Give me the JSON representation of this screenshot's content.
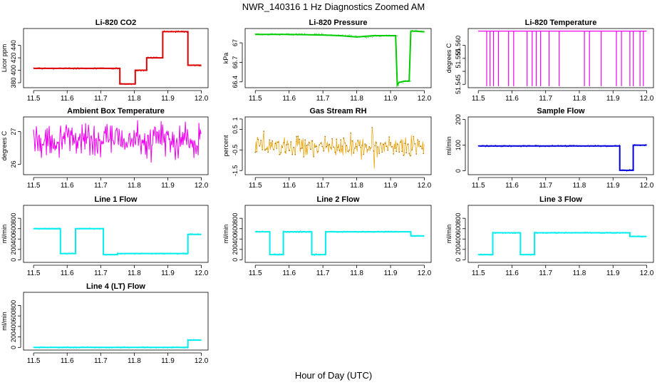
{
  "figure": {
    "title": "NWR_140316  1 Hz Diagnostics Zoomed AM",
    "xlabel": "Hour of Day (UTC)"
  },
  "chart_data": [
    {
      "type": "line",
      "title": "Li-820 CO2",
      "ylabel": "Licor ppm",
      "color": "#dd0000",
      "xlim": [
        11.47,
        12.02
      ],
      "ylim": [
        372,
        467
      ],
      "x_ticks": [
        11.5,
        11.6,
        11.7,
        11.8,
        11.9,
        12.0
      ],
      "y_ticks": [
        380,
        400,
        420,
        440
      ],
      "series": [
        {
          "x": [
            11.5,
            11.757,
            11.757,
            11.803,
            11.803,
            11.837,
            11.837,
            11.885,
            11.885,
            11.96,
            11.96,
            12.0
          ],
          "y": [
            403,
            403,
            378,
            378,
            400,
            400,
            420,
            420,
            462,
            462,
            408,
            408
          ]
        }
      ]
    },
    {
      "type": "line",
      "title": "Li-820 Pressure",
      "ylabel": "kPa",
      "color": "#00cc00",
      "xlim": [
        11.47,
        12.02
      ],
      "ylim": [
        66.31,
        67.22
      ],
      "x_ticks": [
        11.5,
        11.6,
        11.7,
        11.8,
        11.9,
        12.0
      ],
      "y_ticks": [
        66.4,
        66.7,
        67.0
      ],
      "series": [
        {
          "x": [
            11.5,
            11.6,
            11.7,
            11.75,
            11.8,
            11.85,
            11.915,
            11.92,
            11.925,
            11.94,
            11.955,
            11.96,
            11.97,
            12.0
          ],
          "y": [
            67.13,
            67.13,
            67.12,
            67.11,
            67.09,
            67.11,
            67.11,
            66.35,
            66.39,
            66.41,
            66.41,
            67.18,
            67.18,
            67.17
          ]
        }
      ]
    },
    {
      "type": "line",
      "title": "Li-820 Temperature",
      "ylabel": "degrees C",
      "color": "#ee00ee",
      "xlim": [
        11.47,
        12.02
      ],
      "ylim": [
        51.5437,
        51.5665
      ],
      "x_ticks": [
        11.5,
        11.6,
        11.7,
        11.8,
        11.9,
        12.0
      ],
      "y_ticks": [
        51.545,
        51.55,
        51.555,
        51.56
      ],
      "y_tick_labels": [
        "51.545",
        "",
        "51.555",
        "51.560"
      ],
      "baseline": 51.5655,
      "dip": 51.5443,
      "dips": [
        11.525,
        11.535,
        11.545,
        11.56,
        11.59,
        11.605,
        11.645,
        11.66,
        11.672,
        11.685,
        11.71,
        11.74,
        11.815,
        11.83,
        11.865,
        11.91,
        11.925,
        11.95,
        11.96,
        11.98,
        11.99
      ]
    },
    {
      "type": "line",
      "title": "Ambient Box Temperature",
      "ylabel": "degrees C",
      "color": "#ee00ee",
      "xlim": [
        11.47,
        12.02
      ],
      "ylim": [
        25.68,
        27.45
      ],
      "x_ticks": [
        11.5,
        11.6,
        11.7,
        11.8,
        11.9,
        12.0
      ],
      "y_ticks": [
        26.0,
        27.0
      ],
      "noise": {
        "center": 26.75,
        "amp": 0.38,
        "min": 25.8,
        "max": 27.35
      }
    },
    {
      "type": "scatter",
      "title": "Gas Stream RH",
      "ylabel": "percent",
      "color": "#e8a000",
      "xlim": [
        11.47,
        12.02
      ],
      "ylim": [
        -1.7,
        1.1
      ],
      "x_ticks": [
        11.5,
        11.6,
        11.7,
        11.8,
        11.9,
        12.0
      ],
      "y_ticks": [
        -1.5,
        -0.5,
        0.5,
        1.0
      ],
      "noise": {
        "center": -0.35,
        "amp": 0.35,
        "min": -1.5,
        "max": 0.95
      }
    },
    {
      "type": "line",
      "title": "Sample Flow",
      "ylabel": "ml/min",
      "color": "#0000dd",
      "xlim": [
        11.47,
        12.02
      ],
      "ylim": [
        -15,
        210
      ],
      "x_ticks": [
        11.5,
        11.6,
        11.7,
        11.8,
        11.9,
        12.0
      ],
      "y_ticks": [
        0,
        100,
        200
      ],
      "series": [
        {
          "x": [
            11.5,
            11.92,
            11.92,
            11.96,
            11.96,
            12.0
          ],
          "y": [
            97,
            97,
            2,
            2,
            100,
            100
          ]
        }
      ]
    },
    {
      "type": "line",
      "title": "Line 1 Flow",
      "ylabel": "ml/min",
      "color": "#00eeee",
      "xlim": [
        11.47,
        12.02
      ],
      "ylim": [
        -50,
        1050
      ],
      "x_ticks": [
        11.5,
        11.6,
        11.7,
        11.8,
        11.9,
        12.0
      ],
      "y_ticks": [
        0,
        200,
        400,
        600,
        800
      ],
      "series": [
        {
          "x": [
            11.5,
            11.58,
            11.58,
            11.625,
            11.625,
            11.708,
            11.708,
            11.75,
            11.75,
            11.96,
            11.96,
            12.0
          ],
          "y": [
            600,
            600,
            120,
            120,
            600,
            600,
            100,
            100,
            120,
            120,
            490,
            490
          ]
        }
      ]
    },
    {
      "type": "line",
      "title": "Line 2 Flow",
      "ylabel": "ml/min",
      "color": "#00eeee",
      "xlim": [
        11.47,
        12.02
      ],
      "ylim": [
        -50,
        1050
      ],
      "x_ticks": [
        11.5,
        11.6,
        11.7,
        11.8,
        11.9,
        12.0
      ],
      "y_ticks": [
        0,
        200,
        400,
        600,
        800
      ],
      "series": [
        {
          "x": [
            11.5,
            11.543,
            11.543,
            11.583,
            11.583,
            11.667,
            11.667,
            11.708,
            11.708,
            11.96,
            11.96,
            12.0
          ],
          "y": [
            540,
            540,
            100,
            100,
            540,
            540,
            100,
            100,
            540,
            540,
            460,
            460
          ]
        }
      ]
    },
    {
      "type": "line",
      "title": "Line 3 Flow",
      "ylabel": "ml/min",
      "color": "#00eeee",
      "xlim": [
        11.47,
        12.02
      ],
      "ylim": [
        -50,
        1050
      ],
      "x_ticks": [
        11.5,
        11.6,
        11.7,
        11.8,
        11.9,
        12.0
      ],
      "y_ticks": [
        0,
        200,
        400,
        600,
        800
      ],
      "series": [
        {
          "x": [
            11.5,
            11.543,
            11.543,
            11.625,
            11.625,
            11.667,
            11.667,
            11.95,
            11.95,
            12.0
          ],
          "y": [
            100,
            100,
            520,
            520,
            100,
            100,
            520,
            520,
            450,
            450
          ]
        }
      ]
    },
    {
      "type": "line",
      "title": "Line 4 (LT) Flow",
      "ylabel": "ml/min",
      "color": "#00eeee",
      "xlim": [
        11.47,
        12.02
      ],
      "ylim": [
        -50,
        1050
      ],
      "x_ticks": [
        11.5,
        11.6,
        11.7,
        11.8,
        11.9,
        12.0
      ],
      "y_ticks": [
        0,
        200,
        400,
        600,
        800
      ],
      "series": [
        {
          "x": [
            11.5,
            11.96,
            11.96,
            12.0
          ],
          "y": [
            0,
            0,
            140,
            140
          ]
        }
      ]
    }
  ]
}
